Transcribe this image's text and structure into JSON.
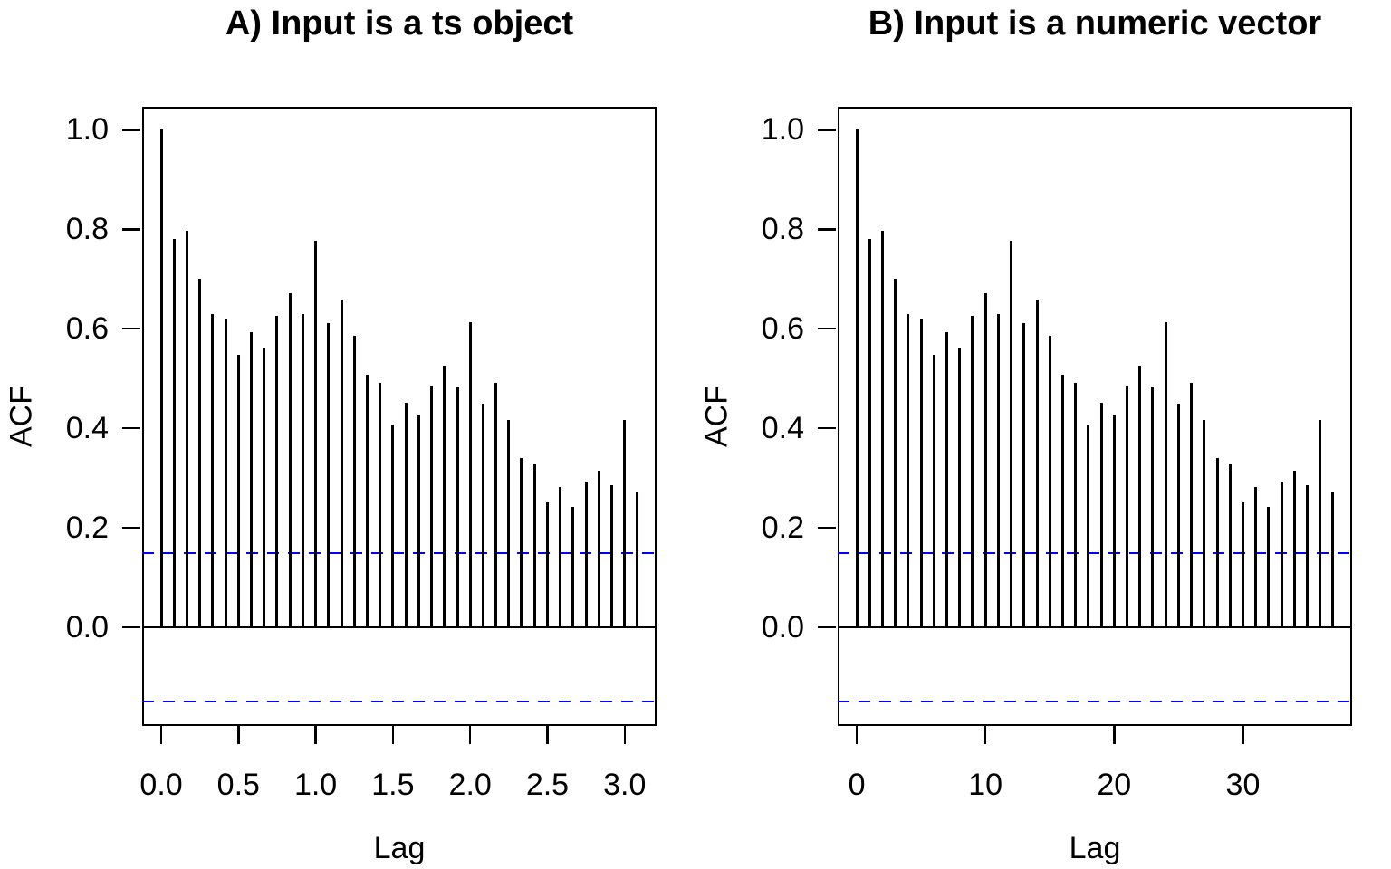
{
  "page": {
    "background": "#ffffff",
    "text_color": "#000000"
  },
  "panels": [
    {
      "id": "A",
      "title": "A) Input is a ts object",
      "x_axis_label": "Lag",
      "y_axis_label": "ACF",
      "x_tick_labels": [
        "0.0",
        "0.5",
        "1.0",
        "1.5",
        "2.0",
        "2.5",
        "3.0"
      ],
      "y_tick_labels": [
        "0.0",
        "0.2",
        "0.4",
        "0.6",
        "0.8",
        "1.0"
      ]
    },
    {
      "id": "B",
      "title": "B) Input is a numeric vector",
      "x_axis_label": "Lag",
      "y_axis_label": "ACF",
      "x_tick_labels": [
        "0",
        "10",
        "20",
        "30"
      ],
      "y_tick_labels": [
        "0.0",
        "0.2",
        "0.4",
        "0.6",
        "0.8",
        "1.0"
      ]
    }
  ],
  "chart_data": [
    {
      "type": "bar",
      "title": "A) Input is a ts object",
      "xlabel": "Lag",
      "ylabel": "ACF",
      "x_unit": "lag in seasonal periods (lag index / 12, frequency = 12)",
      "x": [
        0,
        0.083,
        0.167,
        0.25,
        0.333,
        0.417,
        0.5,
        0.583,
        0.667,
        0.75,
        0.833,
        0.917,
        1.0,
        1.083,
        1.167,
        1.25,
        1.333,
        1.417,
        1.5,
        1.583,
        1.667,
        1.75,
        1.833,
        1.917,
        2.0,
        2.083,
        2.167,
        2.25,
        2.333,
        2.417,
        2.5,
        2.583,
        2.667,
        2.75,
        2.833,
        2.917,
        3.0,
        3.083
      ],
      "values": [
        1.0,
        0.781,
        0.796,
        0.701,
        0.629,
        0.621,
        0.547,
        0.593,
        0.562,
        0.625,
        0.672,
        0.63,
        0.776,
        0.612,
        0.658,
        0.586,
        0.508,
        0.492,
        0.408,
        0.452,
        0.427,
        0.486,
        0.525,
        0.482,
        0.614,
        0.449,
        0.492,
        0.417,
        0.341,
        0.328,
        0.252,
        0.283,
        0.243,
        0.293,
        0.314,
        0.286,
        0.416,
        0.272
      ],
      "x_ticks": [
        0,
        0.5,
        1.0,
        1.5,
        2.0,
        2.5,
        3.0
      ],
      "y_ticks": [
        0.0,
        0.2,
        0.4,
        0.6,
        0.8,
        1.0
      ],
      "xlim": [
        -0.1233,
        3.2066
      ],
      "ylim": [
        -0.198,
        1.046
      ],
      "confidence_bounds": [
        0.149,
        -0.149
      ],
      "confidence_line_color": "#0000ff",
      "confidence_line_style": "dashed",
      "bar_color": "#000000",
      "zero_line": true,
      "grid": false,
      "legend": null
    },
    {
      "type": "bar",
      "title": "B) Input is a numeric vector",
      "xlabel": "Lag",
      "ylabel": "ACF",
      "x_unit": "lag index (observations)",
      "x": [
        0,
        1,
        2,
        3,
        4,
        5,
        6,
        7,
        8,
        9,
        10,
        11,
        12,
        13,
        14,
        15,
        16,
        17,
        18,
        19,
        20,
        21,
        22,
        23,
        24,
        25,
        26,
        27,
        28,
        29,
        30,
        31,
        32,
        33,
        34,
        35,
        36,
        37
      ],
      "values": [
        1.0,
        0.781,
        0.796,
        0.701,
        0.629,
        0.621,
        0.547,
        0.593,
        0.562,
        0.625,
        0.672,
        0.63,
        0.776,
        0.612,
        0.658,
        0.586,
        0.508,
        0.492,
        0.408,
        0.452,
        0.427,
        0.486,
        0.525,
        0.482,
        0.614,
        0.449,
        0.492,
        0.417,
        0.341,
        0.328,
        0.252,
        0.283,
        0.243,
        0.293,
        0.314,
        0.286,
        0.416,
        0.272
      ],
      "x_ticks": [
        0,
        10,
        20,
        30
      ],
      "y_ticks": [
        0.0,
        0.2,
        0.4,
        0.6,
        0.8,
        1.0
      ],
      "xlim": [
        -1.48,
        38.48
      ],
      "ylim": [
        -0.198,
        1.046
      ],
      "confidence_bounds": [
        0.149,
        -0.149
      ],
      "confidence_line_color": "#0000ff",
      "confidence_line_style": "dashed",
      "bar_color": "#000000",
      "zero_line": true,
      "grid": false,
      "legend": null
    }
  ]
}
